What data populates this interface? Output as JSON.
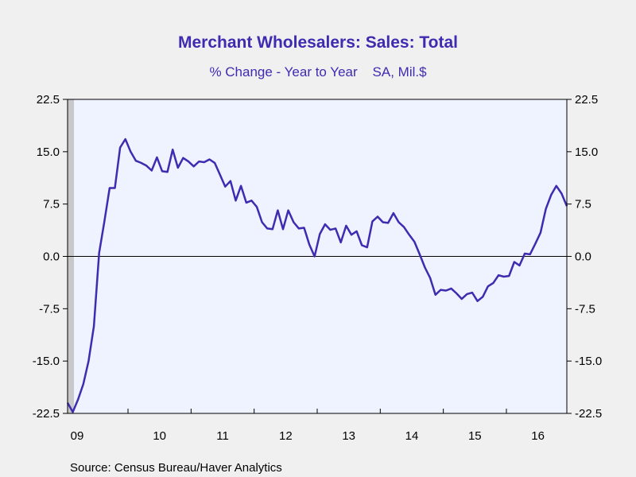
{
  "chart_data": {
    "type": "line",
    "title": "Merchant Wholesalers: Sales: Total",
    "subtitle": "% Change - Year to Year    SA, Mil.$",
    "source": "Source:  Census Bureau/Haver Analytics",
    "ylim": [
      -22.5,
      22.5
    ],
    "y_ticks": [
      "22.5",
      "15.0",
      "7.5",
      "0.0",
      "-7.5",
      "-15.0",
      "-22.5"
    ],
    "y_tick_values": [
      22.5,
      15.0,
      7.5,
      0.0,
      -7.5,
      -15.0,
      -22.5
    ],
    "x_tick_labels": [
      "09",
      "10",
      "11",
      "12",
      "13",
      "14",
      "15",
      "16"
    ],
    "x_start": "2009-01",
    "grid": false,
    "zero_line": true,
    "shaded_recession": {
      "start": "2009-01",
      "end": "2009-06"
    },
    "colors": {
      "line": "#3f2bb0",
      "plot_background": "#eef3ff",
      "recession": "#c8c8c8",
      "title": "#3f2bb0"
    },
    "series": [
      {
        "values": [
          -21.0,
          -22.3,
          -20.5,
          -18.3,
          -15.0,
          -10.0,
          0.5,
          5.0,
          9.8,
          9.8,
          15.6,
          16.8,
          15.0,
          13.7,
          13.4,
          13.0,
          12.3,
          14.2,
          12.2,
          12.1,
          15.3,
          12.7,
          14.1,
          13.6,
          12.9,
          13.6,
          13.5,
          13.9,
          13.4,
          11.7,
          10.0,
          10.8,
          8.0,
          10.1,
          7.7,
          8.0,
          7.1,
          4.9,
          4.0,
          3.9,
          6.6,
          3.9,
          6.6,
          4.9,
          4.0,
          4.1,
          1.7,
          0.0,
          3.2,
          4.6,
          3.8,
          4.0,
          2.0,
          4.4,
          3.1,
          3.6,
          1.6,
          1.3,
          5.0,
          5.7,
          4.9,
          4.8,
          6.2,
          4.9,
          4.2,
          3.1,
          2.1,
          0.3,
          -1.6,
          -3.1,
          -5.5,
          -4.8,
          -4.9,
          -4.6,
          -5.3,
          -6.1,
          -5.4,
          -5.2,
          -6.4,
          -5.8,
          -4.3,
          -3.8,
          -2.7,
          -2.9,
          -2.8,
          -0.8,
          -1.3,
          0.4,
          0.3,
          1.8,
          3.4,
          6.8,
          8.8,
          10.1,
          9.0,
          7.2
        ]
      }
    ]
  }
}
